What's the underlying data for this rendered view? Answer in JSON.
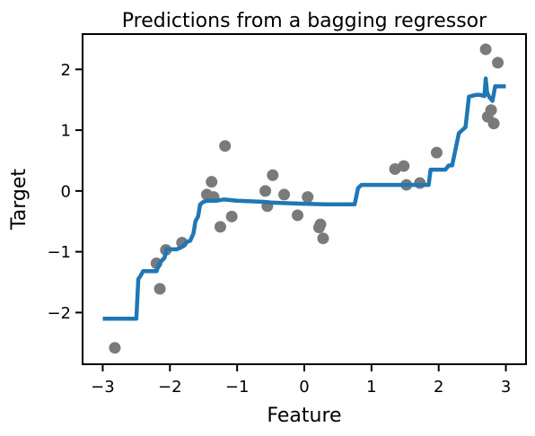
{
  "chart_data": {
    "type": "scatter",
    "title": "Predictions from a bagging regressor",
    "xlabel": "Feature",
    "ylabel": "Target",
    "xlim": [
      -3.3,
      3.3
    ],
    "ylim": [
      -2.85,
      2.58
    ],
    "grid": false,
    "x_ticks": [
      {
        "value": -3,
        "label": "−3"
      },
      {
        "value": -2,
        "label": "−2"
      },
      {
        "value": -1,
        "label": "−1"
      },
      {
        "value": 0,
        "label": "0"
      },
      {
        "value": 1,
        "label": "1"
      },
      {
        "value": 2,
        "label": "2"
      },
      {
        "value": 3,
        "label": "3"
      }
    ],
    "y_ticks": [
      {
        "value": -2,
        "label": "−2"
      },
      {
        "value": -1,
        "label": "−1"
      },
      {
        "value": 0,
        "label": "0"
      },
      {
        "value": 1,
        "label": "1"
      },
      {
        "value": 2,
        "label": "2"
      }
    ],
    "colors": {
      "points": "#7a7a7a",
      "line": "#1f77b4"
    },
    "series": [
      {
        "kind": "points",
        "x": [
          -2.82,
          -2.2,
          -2.15,
          -2.06,
          -1.82,
          -1.45,
          -1.38,
          -1.35,
          -1.25,
          -1.18,
          -1.08,
          -0.58,
          -0.55,
          -0.47,
          -0.3,
          -0.1,
          0.05,
          0.22,
          0.24,
          0.28,
          1.35,
          1.48,
          1.52,
          1.72,
          1.97,
          2.7,
          2.73,
          2.78,
          2.82,
          2.88
        ],
        "y": [
          -2.58,
          -1.19,
          -1.61,
          -0.97,
          -0.85,
          -0.06,
          0.15,
          -0.1,
          -0.59,
          0.74,
          -0.42,
          0.0,
          -0.25,
          0.26,
          -0.06,
          -0.4,
          -0.1,
          -0.6,
          -0.55,
          -0.78,
          0.36,
          0.41,
          0.1,
          0.13,
          0.63,
          2.33,
          1.22,
          1.33,
          1.11,
          2.11
        ]
      },
      {
        "kind": "line",
        "x": [
          -3.0,
          -2.5,
          -2.47,
          -2.44,
          -2.4,
          -2.3,
          -2.2,
          -2.15,
          -2.08,
          -2.05,
          -1.9,
          -1.82,
          -1.75,
          -1.7,
          -1.65,
          -1.62,
          -1.58,
          -1.55,
          -1.5,
          -1.45,
          -1.3,
          -1.2,
          -1.1,
          -1.0,
          -0.6,
          -0.5,
          -0.3,
          0.0,
          0.3,
          0.5,
          0.75,
          0.8,
          0.85,
          1.0,
          1.5,
          1.85,
          1.88,
          2.1,
          2.15,
          2.2,
          2.3,
          2.35,
          2.4,
          2.45,
          2.55,
          2.62,
          2.68,
          2.7,
          2.72,
          2.75,
          2.8,
          2.84,
          2.88,
          3.0
        ],
        "y": [
          -2.1,
          -2.1,
          -1.45,
          -1.4,
          -1.32,
          -1.32,
          -1.32,
          -1.18,
          -1.1,
          -0.96,
          -0.96,
          -0.92,
          -0.84,
          -0.82,
          -0.7,
          -0.5,
          -0.42,
          -0.22,
          -0.18,
          -0.16,
          -0.16,
          -0.14,
          -0.15,
          -0.16,
          -0.18,
          -0.19,
          -0.2,
          -0.21,
          -0.22,
          -0.22,
          -0.22,
          0.05,
          0.1,
          0.1,
          0.1,
          0.1,
          0.35,
          0.35,
          0.42,
          0.42,
          0.95,
          1.0,
          1.05,
          1.55,
          1.58,
          1.58,
          1.56,
          1.85,
          1.62,
          1.55,
          1.48,
          1.72,
          1.72,
          1.72
        ]
      }
    ]
  }
}
